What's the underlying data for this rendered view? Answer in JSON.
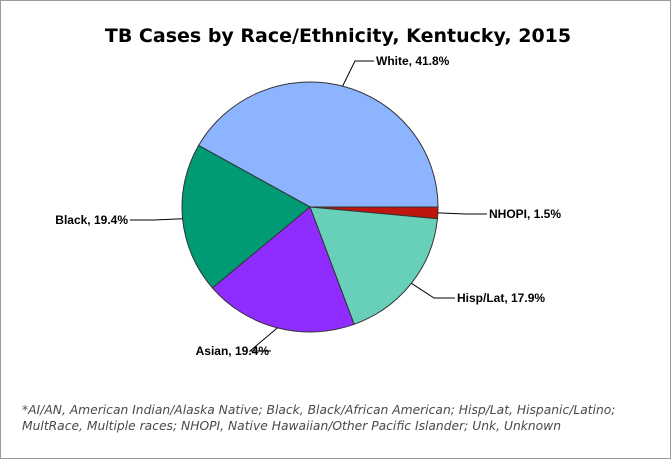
{
  "chart_data": {
    "type": "pie",
    "title": "TB Cases by Race/Ethnicity, Kentucky, 2015",
    "slices": [
      {
        "label": "White, 41.8%",
        "name": "White",
        "value": 41.8,
        "color": "#8db4ff"
      },
      {
        "label": "NHOPI, 1.5%",
        "name": "NHOPI",
        "value": 1.5,
        "color": "#c0140f"
      },
      {
        "label": "Hisp/Lat, 17.9%",
        "name": "Hisp/Lat",
        "value": 17.9,
        "color": "#68cfb8"
      },
      {
        "label": "Asian, 19.4%",
        "name": "Asian",
        "value": 19.4,
        "color": "#8f2cff"
      },
      {
        "label": "Black, 19.4%",
        "name": "Black",
        "value": 19.4,
        "color": "#009a74"
      }
    ],
    "footnote": "*AI/AN, American Indian/Alaska Native; Black, Black/African American; Hisp/Lat, Hispanic/Latino; MultRace, Multiple races; NHOPI, Native Hawaiian/Other Pacific Islander; Unk, Unknown"
  }
}
